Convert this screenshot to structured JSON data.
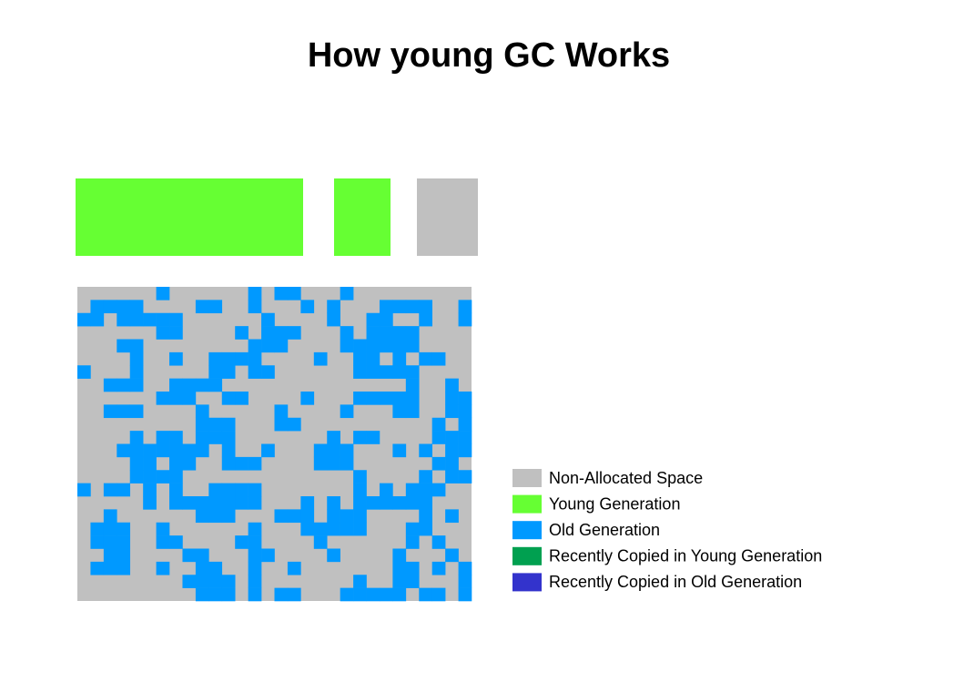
{
  "header": {
    "title": "How young GC Works"
  },
  "legend": {
    "items": [
      {
        "label": "Non-Allocated Space",
        "color": "#c0c0c0"
      },
      {
        "label": "Young Generation",
        "color": "#66ff33"
      },
      {
        "label": "Old Generation",
        "color": "#0099ff"
      },
      {
        "label": "Recently Copied in Young Generation",
        "color": "#00a050"
      },
      {
        "label": "Recently Copied in Old Generation",
        "color": "#3333cc"
      }
    ]
  }
}
